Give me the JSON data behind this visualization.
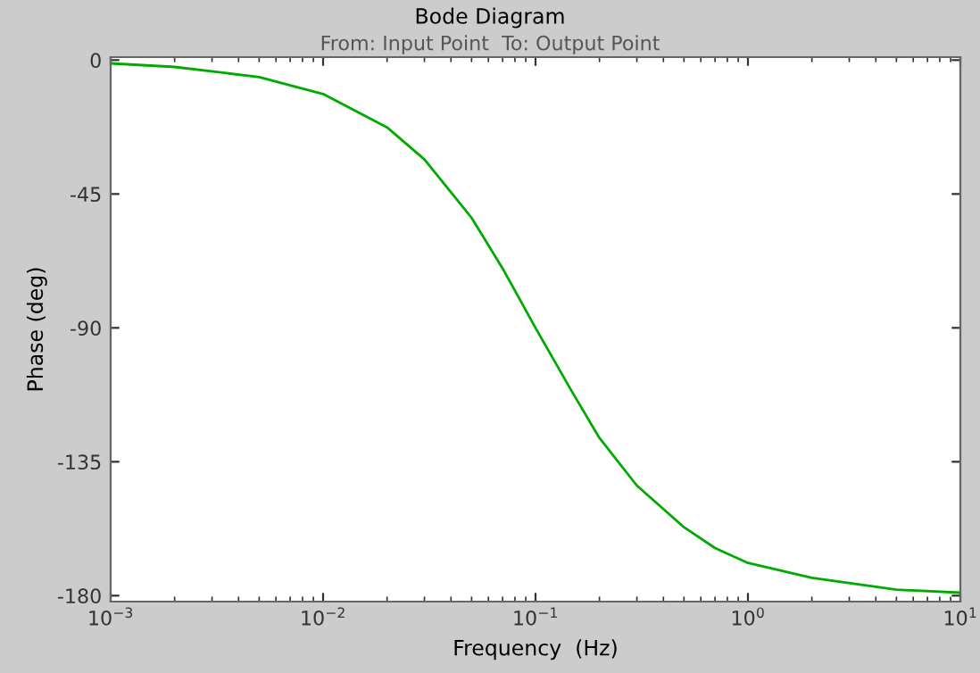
{
  "chart_data": {
    "type": "line",
    "title": "Bode Diagram",
    "subtitle": "From: Input Point  To: Output Point",
    "xlabel": "Frequency  (Hz)",
    "ylabel": "Phase (deg)",
    "log": "x",
    "x": [
      0.001,
      0.002,
      0.005,
      0.01,
      0.02,
      0.03,
      0.05,
      0.07,
      0.1,
      0.15,
      0.2,
      0.3,
      0.5,
      0.7,
      1,
      2,
      5,
      10
    ],
    "series": [
      {
        "color": "#00aa00",
        "values": [
          -1.1,
          -2.3,
          -5.7,
          -11.4,
          -22.6,
          -33.4,
          -53,
          -70,
          -90,
          -112,
          -127,
          -143,
          -157,
          -164,
          -169,
          -174,
          -178,
          -179
        ]
      }
    ],
    "xlim": [
      0.001,
      10
    ],
    "ylim": [
      -182,
      1
    ],
    "xticks": [
      {
        "value": 0.001,
        "label": "10$^{−3}$"
      },
      {
        "value": 0.01,
        "label": "10$^{−2}$"
      },
      {
        "value": 0.1,
        "label": "10$^{−1}$"
      },
      {
        "value": 1,
        "label": "10$^{0}$"
      },
      {
        "value": 10,
        "label": "10$^{1}$"
      }
    ],
    "yticks": [
      0,
      -45,
      -90,
      -135,
      -180
    ],
    "grid": false,
    "legend": false,
    "marker": "none",
    "line_style": "solid"
  }
}
